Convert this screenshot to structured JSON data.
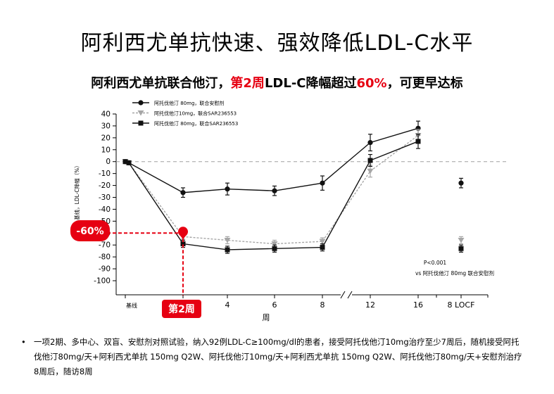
{
  "page": {
    "title": "阿利西尤单抗快速、强效降低LDL-C水平",
    "subtitle_parts": [
      "阿利西尤单抗联合他汀，",
      "第2周",
      "LDL-C降幅超过",
      "60%",
      "，可更早达标"
    ],
    "footnote": "一项2期、多中心、双盲、安慰剂对照试验，纳入92例LDL-C≥100mg/dl的患者，接受阿托伐他汀10mg治疗至少7周后，随机接受阿托伐他汀80mg/天+阿利西尤单抗 150mg Q2W、阿托伐他汀10mg/天+阿利西尤单抗 150mg Q2W、阿托伐他汀80mg/天+安慰剂治疗8周后，随访8周",
    "bullet": "•"
  },
  "colors": {
    "accent_red": "#e60012",
    "series_black": "#111111",
    "series_gray": "#a6a6a6",
    "reference_line": "#a0a0a0"
  },
  "chart_data": {
    "type": "line",
    "ylabel": "基线，LDL-C降幅（%）",
    "xlabel": "周",
    "ylim": [
      -100,
      40
    ],
    "yticks": [
      40,
      30,
      20,
      10,
      0,
      -10,
      -20,
      -30,
      -40,
      -50,
      -60,
      -70,
      -80,
      -90,
      -100
    ],
    "xtick_labels": [
      "基线",
      "2",
      "4",
      "6",
      "8",
      "12",
      "16",
      "8 LOCF"
    ],
    "axis_break_between": [
      "8",
      "12"
    ],
    "reference_line_y": 0,
    "series": [
      {
        "name": "阿托伐他汀 80mg，联合安慰剂",
        "marker": "circle",
        "color": "#111111",
        "dash": "solid",
        "x": [
          "基线",
          "0.3",
          "2",
          "4",
          "6",
          "8",
          "12",
          "16"
        ],
        "y": [
          0,
          -1,
          -26,
          -23,
          -24.5,
          -18,
          16,
          28
        ],
        "err": [
          0,
          0,
          4,
          5,
          4,
          6,
          7,
          6
        ],
        "locf": {
          "y": -18,
          "err": 4
        }
      },
      {
        "name": "阿托伐他汀10mg，联合SAR236553",
        "marker": "triangle-down",
        "color": "#a6a6a6",
        "dash": "dashed",
        "x": [
          "基线",
          "0.3",
          "2",
          "4",
          "6",
          "8",
          "12",
          "16"
        ],
        "y": [
          0,
          -1,
          -63,
          -66,
          -69,
          -67,
          -8,
          22
        ],
        "err": [
          0,
          0,
          2,
          3,
          3,
          3,
          5,
          5
        ],
        "locf": {
          "y": -66,
          "err": 3
        }
      },
      {
        "name": "阿托伐他汀 80mg，联合SAR236553",
        "marker": "square",
        "color": "#111111",
        "dash": "solid",
        "x": [
          "基线",
          "0.3",
          "2",
          "4",
          "6",
          "8",
          "12",
          "16"
        ],
        "y": [
          0,
          -1,
          -69,
          -74,
          -73,
          -72,
          1,
          17
        ],
        "err": [
          0,
          0,
          3,
          3,
          3,
          3,
          5,
          6
        ],
        "locf": {
          "y": -73,
          "err": 3
        }
      }
    ],
    "annotations": {
      "highlight_value_label": "-60%",
      "highlight_week_label": "第2周",
      "highlight": {
        "x": "2",
        "y": -60
      },
      "stats_line1": "P<0.001",
      "stats_line2": "vs 阿托伐他汀 80mg 联合安慰剂"
    }
  }
}
